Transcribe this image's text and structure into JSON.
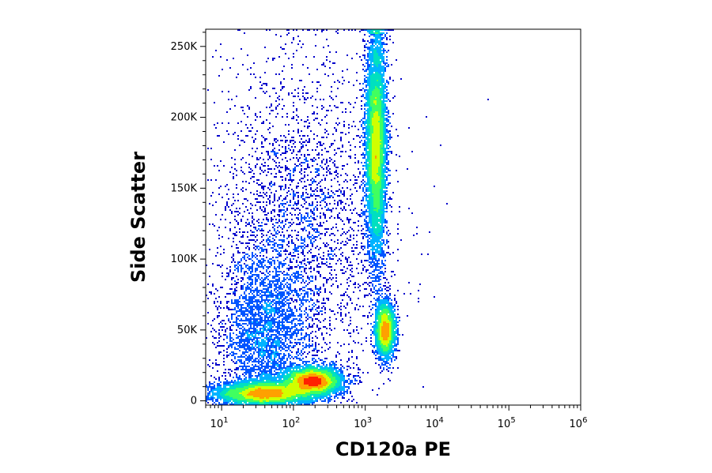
{
  "chart_data": {
    "type": "scatter",
    "style": "density-dot-plot",
    "xlabel": "CD120a PE",
    "ylabel": "Side Scatter",
    "x_scale": "log",
    "xlim": [
      6,
      1000000
    ],
    "ylim": [
      -3000,
      262143
    ],
    "x_ticks": [
      {
        "value": 10,
        "base": "10",
        "exp": "1"
      },
      {
        "value": 100,
        "base": "10",
        "exp": "2"
      },
      {
        "value": 1000,
        "base": "10",
        "exp": "3"
      },
      {
        "value": 10000,
        "base": "10",
        "exp": "4"
      },
      {
        "value": 100000,
        "base": "10",
        "exp": "5"
      },
      {
        "value": 1000000,
        "base": "10",
        "exp": "6"
      }
    ],
    "y_ticks": [
      {
        "value": 0,
        "label": "0"
      },
      {
        "value": 50000,
        "label": "50K"
      },
      {
        "value": 100000,
        "label": "100K"
      },
      {
        "value": 150000,
        "label": "150K"
      },
      {
        "value": 200000,
        "label": "200K"
      },
      {
        "value": 250000,
        "label": "250K"
      }
    ],
    "density_colors": [
      "#0000cc",
      "#0055ff",
      "#00b4ff",
      "#00e0c0",
      "#40ff60",
      "#d0ff00",
      "#ffa000",
      "#ff2000"
    ],
    "populations": [
      {
        "log_x_center": 1.6,
        "y_center": 5000,
        "log_x_sd": 0.35,
        "y_sd": 4500,
        "fraction": 0.2
      },
      {
        "log_x_center": 2.28,
        "y_center": 14000,
        "log_x_sd": 0.2,
        "y_sd": 5000,
        "fraction": 0.17
      },
      {
        "log_x_center": 1.6,
        "y_center": 45000,
        "log_x_sd": 0.3,
        "y_sd": 30000,
        "fraction": 0.12
      },
      {
        "log_x_center": 3.28,
        "y_center": 50000,
        "log_x_sd": 0.07,
        "y_sd": 10000,
        "fraction": 0.1
      },
      {
        "log_x_center": 3.15,
        "y_center": 180000,
        "log_x_sd": 0.07,
        "y_sd": 40000,
        "fraction": 0.29
      },
      {
        "log_x_center": 2.1,
        "y_center": 120000,
        "log_x_sd": 0.6,
        "y_sd": 60000,
        "fraction": 0.12
      }
    ]
  }
}
